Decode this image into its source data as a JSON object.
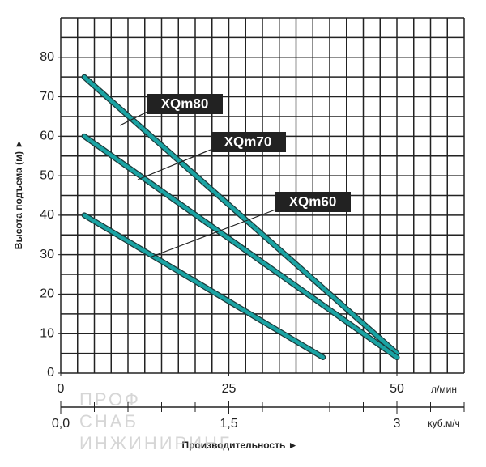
{
  "chart_data": {
    "type": "line",
    "xlabel": "Производительность ►",
    "ylabel": "Высота подъема (м) ►",
    "xunit": "л/мин",
    "x2unit": "куб.м/ч",
    "xlim": [
      0,
      60
    ],
    "xticks": [
      0,
      25,
      50
    ],
    "x2lim": [
      0,
      3.6
    ],
    "x2ticks": [
      {
        "value": 0,
        "label": "0,0"
      },
      {
        "value": 1.5,
        "label": "1,5"
      },
      3
    ],
    "ylim": [
      0,
      90
    ],
    "yticks": [
      0,
      10,
      20,
      30,
      40,
      50,
      60,
      70,
      80
    ],
    "grid": true,
    "series": [
      {
        "name": "XQm80",
        "color": "#1aa3a3",
        "x": [
          3.5,
          50
        ],
        "values": [
          75,
          5
        ]
      },
      {
        "name": "XQm70",
        "color": "#1aa3a3",
        "x": [
          3.5,
          50
        ],
        "values": [
          60,
          4
        ]
      },
      {
        "name": "XQm60",
        "color": "#1aa3a3",
        "x": [
          3.5,
          39
        ],
        "values": [
          40,
          4
        ]
      }
    ],
    "watermark": [
      "ПРОФ",
      "СНАБ",
      "ИНЖИНИРИНГ"
    ]
  }
}
